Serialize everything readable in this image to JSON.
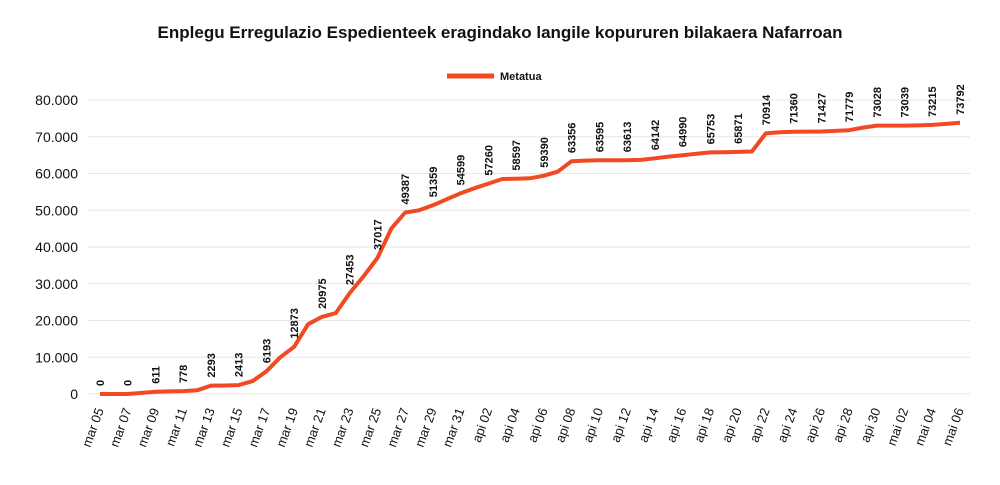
{
  "chart_data": {
    "type": "line",
    "title": "Enplegu Erregulazio Espedienteek eragindako langile kopururen bilakaera Nafarroan",
    "categories": [
      "mar 05",
      null,
      "mar 07",
      null,
      "mar 09",
      null,
      "mar 11",
      null,
      "mar 13",
      null,
      "mar 15",
      null,
      "mar 17",
      null,
      "mar 19",
      null,
      "mar 21",
      null,
      "mar 23",
      null,
      "mar 25",
      null,
      "mar 27",
      null,
      "mar 29",
      null,
      "mar 31",
      null,
      "api 02",
      null,
      "api 04",
      null,
      "api 06",
      null,
      "api 08",
      null,
      "api 10",
      null,
      "api 12",
      null,
      "api 14",
      null,
      "api 16",
      null,
      "api 18",
      null,
      "api 20",
      null,
      "api 22",
      null,
      "api 24",
      null,
      "api 26",
      null,
      "api 28",
      null,
      "api 30",
      null,
      "mai 02",
      null,
      "mai 04",
      null,
      "mai 06"
    ],
    "series": [
      {
        "name": "Metatua",
        "color": "#f04a23",
        "values": [
          0,
          0,
          0,
          300,
          611,
          700,
          778,
          1000,
          2293,
          2300,
          2413,
          3500,
          6193,
          10000,
          12873,
          19000,
          20975,
          22000,
          27453,
          32000,
          37017,
          45000,
          49387,
          50000,
          51359,
          53000,
          54599,
          56000,
          57260,
          58500,
          58597,
          58700,
          59390,
          60500,
          63356,
          63500,
          63595,
          63600,
          63613,
          63700,
          64142,
          64600,
          64990,
          65400,
          65753,
          65800,
          65871,
          66000,
          70914,
          71200,
          71360,
          71400,
          71427,
          71600,
          71779,
          72500,
          73028,
          73030,
          73039,
          73100,
          73215,
          73500,
          73792
        ],
        "value_labels": [
          "0",
          null,
          "0",
          null,
          "611",
          null,
          "778",
          null,
          "2293",
          null,
          "2413",
          null,
          "6193",
          null,
          "12873",
          null,
          "20975",
          null,
          "27453",
          null,
          "37017",
          null,
          "49387",
          null,
          "51359",
          null,
          "54599",
          null,
          "57260",
          null,
          "58597",
          null,
          "59390",
          null,
          "63356",
          null,
          "63595",
          null,
          "63613",
          null,
          "64142",
          null,
          "64990",
          null,
          "65753",
          null,
          "65871",
          null,
          "70914",
          null,
          "71360",
          null,
          "71427",
          null,
          "71779",
          null,
          "73028",
          null,
          "73039",
          null,
          "73215",
          null,
          "73792"
        ]
      }
    ],
    "ylim": [
      0,
      80000
    ],
    "yticks": [
      0,
      {
        "value": 10000,
        "label": "10.000"
      },
      {
        "value": 20000,
        "label": "20.000"
      },
      {
        "value": 30000,
        "label": "30.000"
      },
      {
        "value": 40000,
        "label": "40.000"
      },
      {
        "value": 50000,
        "label": "50.000"
      },
      {
        "value": 60000,
        "label": "60.000"
      },
      {
        "value": 70000,
        "label": "70.000"
      },
      {
        "value": 80000,
        "label": "80.000"
      }
    ],
    "grid": true,
    "legend": "top"
  }
}
